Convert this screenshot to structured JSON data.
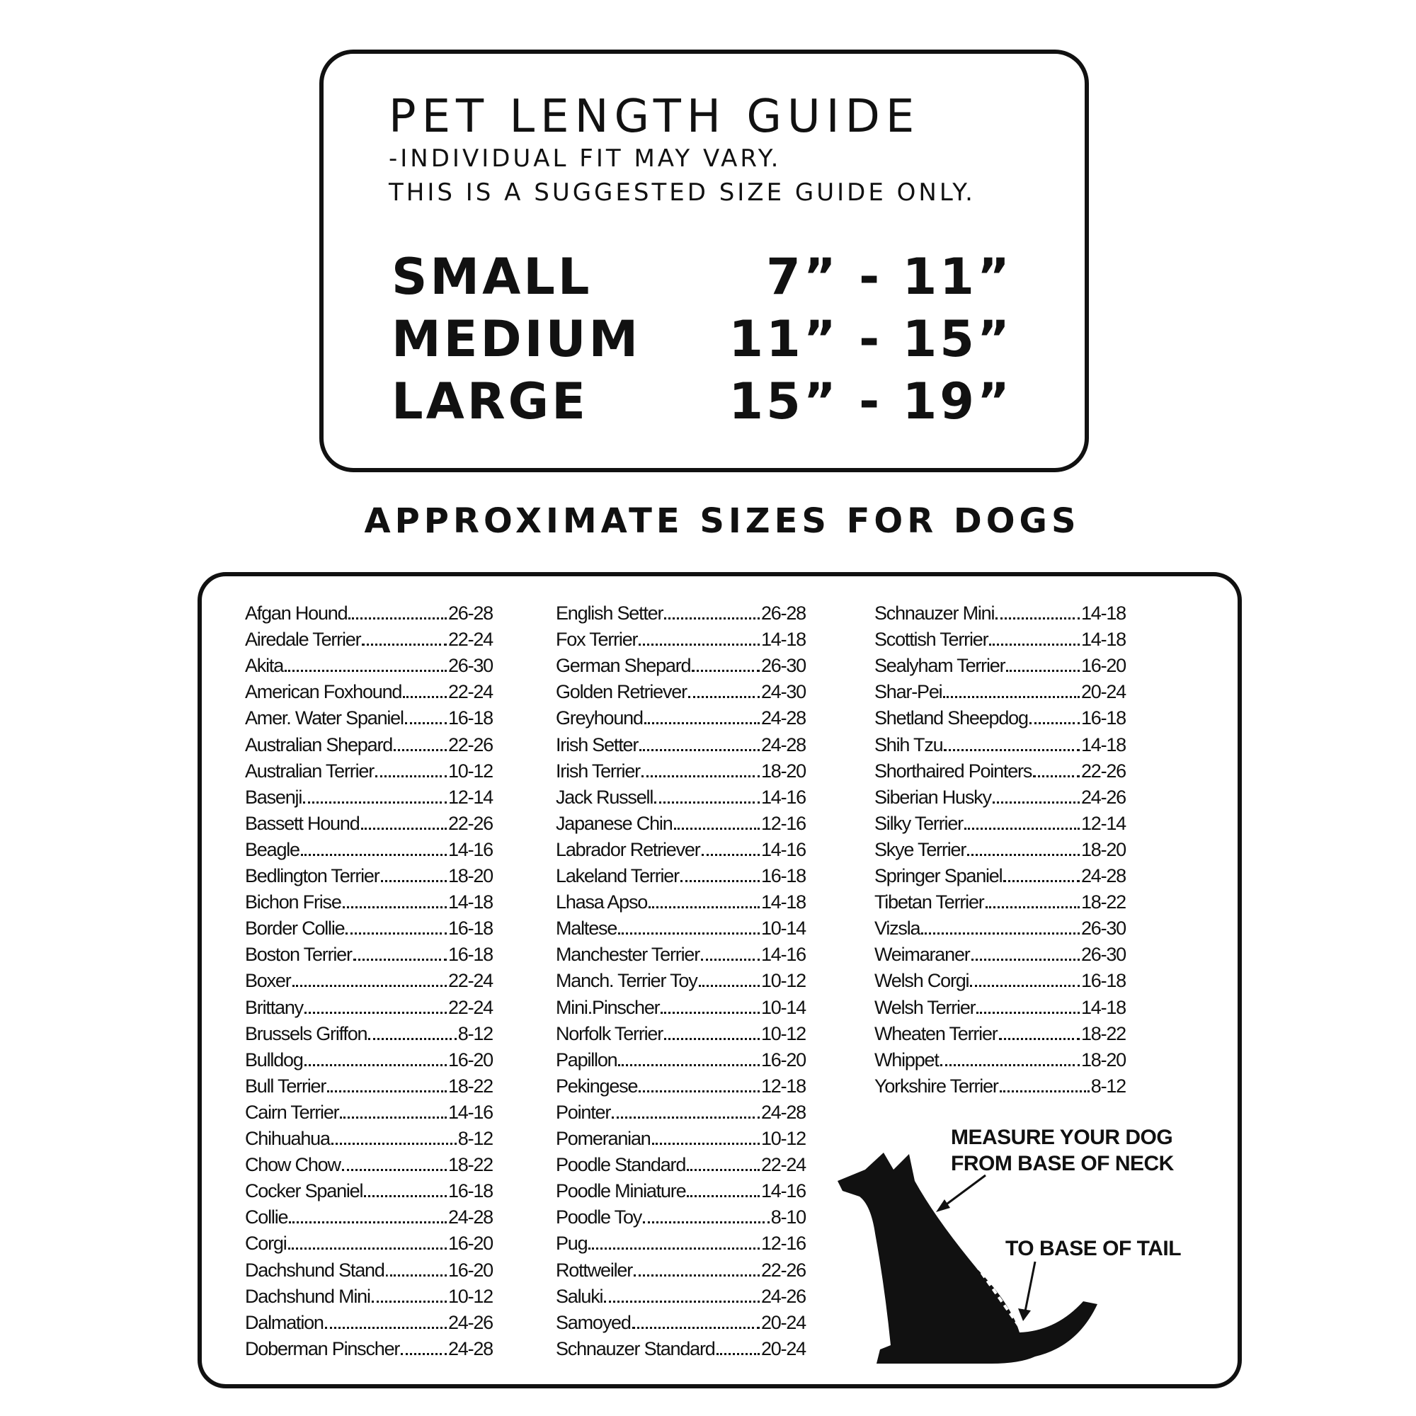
{
  "header": {
    "title": "PET LENGTH GUIDE",
    "notes": [
      "-INDIVIDUAL FIT MAY VARY.",
      "THIS IS A SUGGESTED SIZE GUIDE ONLY."
    ]
  },
  "sizes": [
    {
      "name": "SMALL",
      "range": "7” - 11”"
    },
    {
      "name": "MEDIUM",
      "range": "11” - 15”"
    },
    {
      "name": "LARGE",
      "range": "15” - 19”"
    }
  ],
  "subtitle": "APPROXIMATE SIZES FOR DOGS",
  "breeds": [
    [
      [
        "Afgan Hound",
        "26-28"
      ],
      [
        "Airedale Terrier",
        "22-24"
      ],
      [
        "Akita",
        "26-30"
      ],
      [
        "American Foxhound",
        "22-24"
      ],
      [
        "Amer. Water Spaniel",
        "16-18"
      ],
      [
        "Australian Shepard",
        "22-26"
      ],
      [
        "Australian Terrier",
        "10-12"
      ],
      [
        "Basenji",
        "12-14"
      ],
      [
        "Bassett Hound",
        "22-26"
      ],
      [
        "Beagle",
        "14-16"
      ],
      [
        "Bedlington Terrier",
        "18-20"
      ],
      [
        "Bichon Frise",
        "14-18"
      ],
      [
        "Border Collie",
        "16-18"
      ],
      [
        "Boston Terrier",
        "16-18"
      ],
      [
        "Boxer",
        "22-24"
      ],
      [
        "Brittany",
        "22-24"
      ],
      [
        "Brussels Griffon",
        "8-12"
      ],
      [
        "Bulldog",
        "16-20"
      ],
      [
        "Bull Terrier",
        "18-22"
      ],
      [
        "Cairn Terrier",
        "14-16"
      ],
      [
        "Chihuahua",
        "8-12"
      ],
      [
        "Chow Chow",
        "18-22"
      ],
      [
        "Cocker Spaniel",
        "16-18"
      ],
      [
        "Collie",
        "24-28"
      ],
      [
        "Corgi",
        "16-20"
      ],
      [
        "Dachshund Stand.",
        "16-20"
      ],
      [
        "Dachshund Mini",
        "10-12"
      ],
      [
        "Dalmation",
        "24-26"
      ],
      [
        "Doberman Pinscher",
        "24-28"
      ]
    ],
    [
      [
        "English Setter",
        "26-28"
      ],
      [
        "Fox Terrier",
        "14-18"
      ],
      [
        "German Shepard",
        "26-30"
      ],
      [
        "Golden Retriever",
        "24-30"
      ],
      [
        "Greyhound",
        "24-28"
      ],
      [
        "Irish Setter",
        "24-28"
      ],
      [
        "Irish Terrier",
        "18-20"
      ],
      [
        "Jack Russell",
        "14-16"
      ],
      [
        "Japanese Chin",
        "12-16"
      ],
      [
        "Labrador Retriever",
        "14-16"
      ],
      [
        "Lakeland Terrier",
        "16-18"
      ],
      [
        "Lhasa Apso",
        "14-18"
      ],
      [
        "Maltese",
        "10-14"
      ],
      [
        "Manchester Terrier",
        "14-16"
      ],
      [
        "Manch. Terrier Toy",
        "10-12"
      ],
      [
        "Mini.Pinscher",
        "10-14"
      ],
      [
        "Norfolk Terrier",
        "10-12"
      ],
      [
        "Papillon",
        "16-20"
      ],
      [
        "Pekingese",
        "12-18"
      ],
      [
        "Pointer",
        "24-28"
      ],
      [
        "Pomeranian",
        "10-12"
      ],
      [
        "Poodle Standard",
        "22-24"
      ],
      [
        "Poodle Miniature",
        "14-16"
      ],
      [
        "Poodle Toy",
        "8-10"
      ],
      [
        "Pug",
        "12-16"
      ],
      [
        "Rottweiler",
        "22-26"
      ],
      [
        "Saluki",
        "24-26"
      ],
      [
        "Samoyed",
        "20-24"
      ],
      [
        "Schnauzer Standard",
        "20-24"
      ]
    ],
    [
      [
        "Schnauzer Mini",
        "14-18"
      ],
      [
        "Scottish Terrier",
        "14-18"
      ],
      [
        "Sealyham Terrier",
        "16-20"
      ],
      [
        "Shar-Pei",
        "20-24"
      ],
      [
        "Shetland Sheepdog",
        "16-18"
      ],
      [
        "Shih Tzu",
        "14-18"
      ],
      [
        "Shorthaired Pointers",
        "22-26"
      ],
      [
        "Siberian Husky",
        "24-26"
      ],
      [
        "Silky Terrier",
        "12-14"
      ],
      [
        "Skye Terrier",
        "18-20"
      ],
      [
        "Springer Spaniel",
        "24-28"
      ],
      [
        "Tibetan Terrier",
        "18-22"
      ],
      [
        "Vizsla",
        "26-30"
      ],
      [
        "Weimaraner",
        "26-30"
      ],
      [
        "Welsh Corgi",
        "16-18"
      ],
      [
        "Welsh Terrier",
        "14-18"
      ],
      [
        "Wheaten Terrier",
        "18-22"
      ],
      [
        "Whippet",
        "18-20"
      ],
      [
        "Yorkshire Terrier",
        "8-12"
      ]
    ]
  ],
  "measure": {
    "lines": [
      "MEASURE YOUR DOG",
      "FROM BASE OF NECK"
    ],
    "tail": "TO BASE OF TAIL"
  }
}
